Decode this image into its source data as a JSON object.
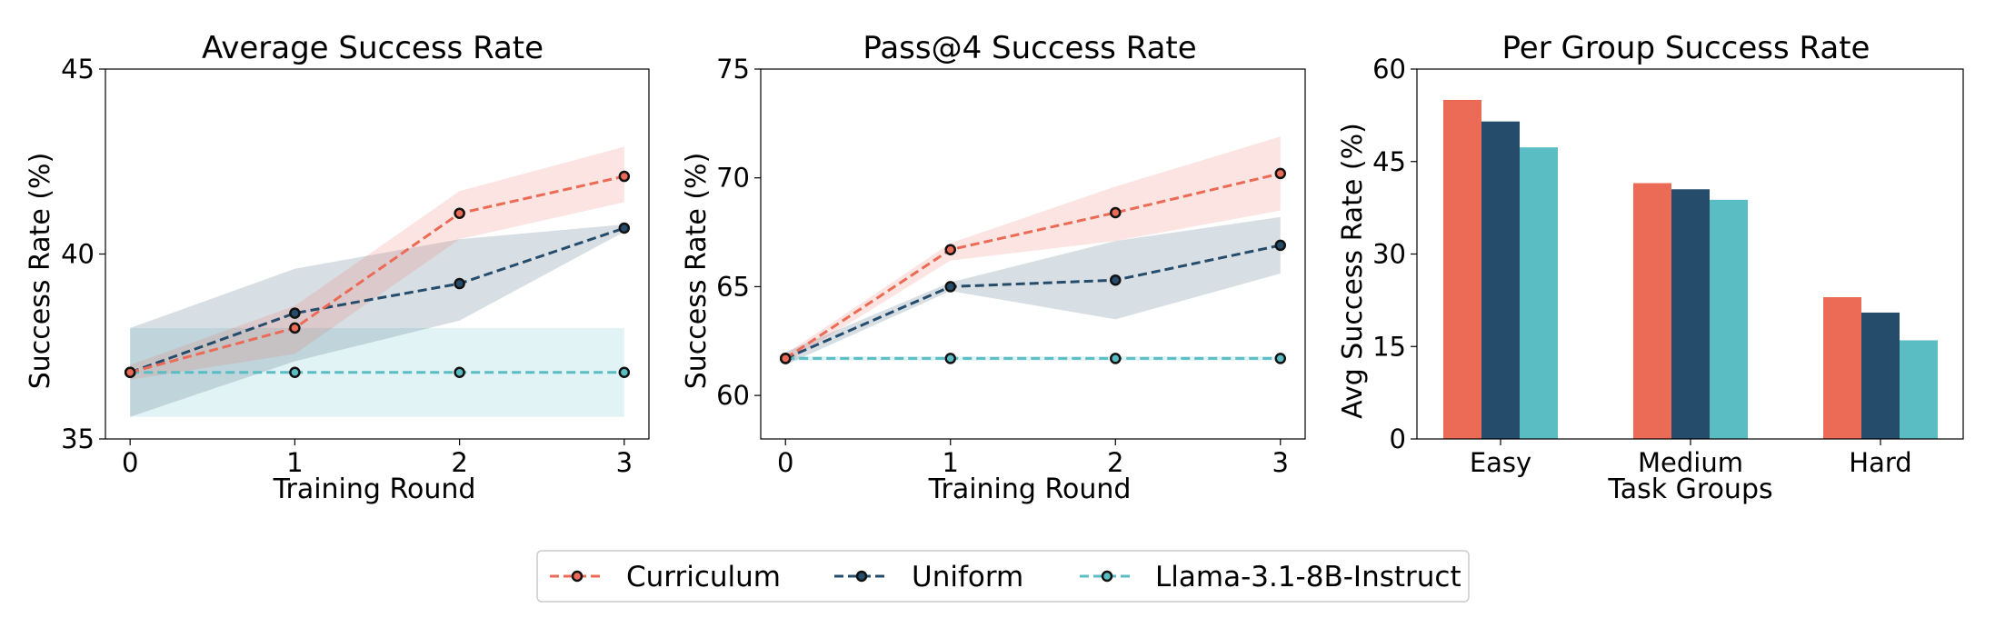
{
  "chart_data": [
    {
      "type": "line",
      "title": "Average Success Rate",
      "xlabel": "Training Round",
      "ylabel": "Success Rate (%)",
      "x": [
        0,
        1,
        2,
        3
      ],
      "xticks": [
        "0",
        "1",
        "2",
        "3"
      ],
      "ylim": [
        35,
        45
      ],
      "yticks": [
        "35",
        "40",
        "45"
      ],
      "series": [
        {
          "name": "Curriculum",
          "color": "#EB6B56",
          "values": [
            36.8,
            38.0,
            41.1,
            42.1
          ],
          "lower": [
            36.6,
            37.3,
            40.4,
            41.4
          ],
          "upper": [
            37.0,
            38.6,
            41.7,
            42.9
          ]
        },
        {
          "name": "Uniform",
          "color": "#264C6B",
          "values": [
            36.8,
            38.4,
            39.2,
            40.7
          ],
          "lower": [
            35.6,
            37.1,
            38.2,
            40.6
          ],
          "upper": [
            38.0,
            39.6,
            40.4,
            40.8
          ]
        },
        {
          "name": "Llama-3.1-8B-Instruct",
          "color": "#5BBDC4",
          "values": [
            36.8,
            36.8,
            36.8,
            36.8
          ],
          "lower": [
            35.6,
            35.6,
            35.6,
            35.6
          ],
          "upper": [
            38.0,
            38.0,
            38.0,
            38.0
          ]
        }
      ]
    },
    {
      "type": "line",
      "title": "Pass@4 Success Rate",
      "xlabel": "Training Round",
      "ylabel": "Success Rate (%)",
      "x": [
        0,
        1,
        2,
        3
      ],
      "xticks": [
        "0",
        "1",
        "2",
        "3"
      ],
      "ylim": [
        58,
        75
      ],
      "yticks": [
        "60",
        "65",
        "70",
        "75"
      ],
      "series": [
        {
          "name": "Curriculum",
          "color": "#EB6B56",
          "values": [
            61.7,
            66.7,
            68.4,
            70.2
          ],
          "lower": [
            61.5,
            66.2,
            67.1,
            68.5
          ],
          "upper": [
            61.9,
            67.0,
            69.6,
            71.9
          ]
        },
        {
          "name": "Uniform",
          "color": "#264C6B",
          "values": [
            61.7,
            65.0,
            65.3,
            66.9
          ],
          "lower": [
            61.4,
            64.8,
            63.5,
            65.6
          ],
          "upper": [
            62.0,
            65.2,
            67.1,
            68.2
          ]
        },
        {
          "name": "Llama-3.1-8B-Instruct",
          "color": "#5BBDC4",
          "values": [
            61.7,
            61.7,
            61.7,
            61.7
          ],
          "lower": [
            61.6,
            61.6,
            61.6,
            61.6
          ],
          "upper": [
            61.8,
            61.8,
            61.8,
            61.8
          ]
        }
      ]
    },
    {
      "type": "bar",
      "title": "Per Group Success Rate",
      "xlabel": "Task Groups",
      "ylabel": "Avg Success Rate (%)",
      "categories": [
        "Easy",
        "Medium",
        "Hard"
      ],
      "ylim": [
        0,
        60
      ],
      "yticks": [
        "0",
        "15",
        "30",
        "45",
        "60"
      ],
      "series": [
        {
          "name": "Curriculum",
          "color": "#EB6B56",
          "values": [
            55.0,
            41.5,
            23.0
          ]
        },
        {
          "name": "Uniform",
          "color": "#264C6B",
          "values": [
            51.5,
            40.5,
            20.5
          ]
        },
        {
          "name": "Llama-3.1-8B-Instruct",
          "color": "#5BBDC4",
          "values": [
            47.3,
            38.8,
            16.0
          ]
        }
      ]
    }
  ],
  "legend": {
    "placement": "bottom-center",
    "items": [
      {
        "label": "Curriculum",
        "color": "#EB6B56"
      },
      {
        "label": "Uniform",
        "color": "#264C6B"
      },
      {
        "label": "Llama-3.1-8B-Instruct",
        "color": "#5BBDC4"
      }
    ]
  }
}
